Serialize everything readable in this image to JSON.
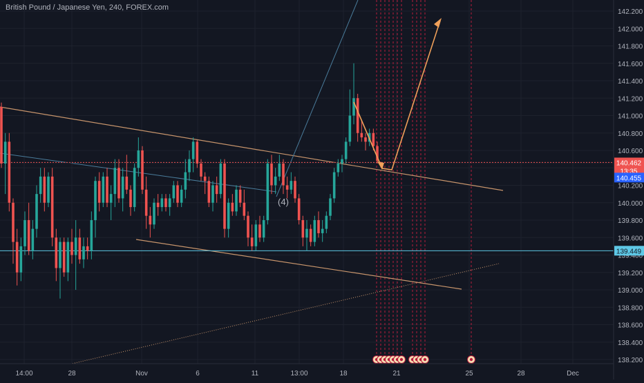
{
  "header": {
    "title": "British Pound / Japanese Yen, 240, FOREX.com"
  },
  "colors": {
    "background": "#131722",
    "grid": "#1e222d",
    "text": "#b2b5be",
    "up": "#26a69a",
    "down": "#ef5350",
    "channel_line": "#c8956c",
    "projection_arrow": "#f0a05a",
    "fib_line": "#4a7c9b",
    "event_line": "#b71c3c",
    "support_line": "#5ec8e6"
  },
  "chart_data": {
    "type": "candlestick",
    "symbol": "British Pound / Japanese Yen",
    "interval": "240",
    "source": "FOREX.com",
    "ylim": [
      138.2,
      142.2
    ],
    "y_ticks": [
      "142.200",
      "142.000",
      "141.800",
      "141.600",
      "141.400",
      "141.200",
      "141.000",
      "140.800",
      "140.600",
      "140.400",
      "140.200",
      "140.000",
      "139.800",
      "139.600",
      "139.400",
      "139.200",
      "139.000",
      "138.800",
      "138.600",
      "138.400",
      "138.200"
    ],
    "x_ticks": [
      "14:00",
      "28",
      "Nov",
      "6",
      "11",
      "13:00",
      "18",
      "21",
      "25",
      "28",
      "Dec"
    ],
    "price_labels": [
      {
        "text": "140.462",
        "sub": "13:35",
        "value": 140.462,
        "color": "#ef5350"
      },
      {
        "text": "140.455",
        "value": 140.455,
        "color": "#2962ff"
      },
      {
        "text": "139.449",
        "value": 139.449,
        "color": "#5ec8e6"
      }
    ],
    "annotation": "(4)",
    "candles": [
      [
        141.1,
        141.15,
        140.4,
        140.45
      ],
      [
        140.45,
        140.8,
        140.1,
        140.7
      ],
      [
        140.7,
        140.8,
        139.9,
        140.0
      ],
      [
        140.0,
        140.05,
        139.3,
        139.55
      ],
      [
        139.55,
        139.7,
        139.05,
        139.2
      ],
      [
        139.2,
        139.6,
        139.1,
        139.5
      ],
      [
        139.5,
        139.9,
        139.4,
        139.8
      ],
      [
        139.8,
        140.0,
        139.4,
        139.45
      ],
      [
        139.45,
        139.8,
        139.35,
        139.7
      ],
      [
        139.7,
        140.2,
        139.6,
        140.1
      ],
      [
        140.1,
        140.4,
        140.0,
        140.3
      ],
      [
        140.3,
        140.4,
        139.9,
        140.0
      ],
      [
        140.0,
        140.35,
        139.95,
        140.3
      ],
      [
        140.3,
        140.4,
        139.5,
        139.6
      ],
      [
        139.6,
        139.7,
        139.1,
        139.25
      ],
      [
        139.25,
        139.6,
        138.9,
        139.55
      ],
      [
        139.55,
        139.6,
        139.15,
        139.2
      ],
      [
        139.2,
        139.6,
        139.1,
        139.55
      ],
      [
        139.55,
        139.7,
        139.3,
        139.4
      ],
      [
        139.4,
        139.8,
        139.0,
        139.6
      ],
      [
        139.6,
        139.7,
        139.3,
        139.35
      ],
      [
        139.35,
        139.6,
        139.25,
        139.5
      ],
      [
        139.5,
        139.6,
        139.35,
        139.45
      ],
      [
        139.45,
        139.9,
        139.35,
        139.8
      ],
      [
        139.8,
        140.3,
        139.6,
        140.25
      ],
      [
        140.25,
        140.35,
        139.9,
        140.0
      ],
      [
        140.0,
        140.35,
        139.95,
        140.3
      ],
      [
        140.3,
        140.4,
        139.95,
        140.0
      ],
      [
        140.0,
        140.2,
        139.8,
        140.1
      ],
      [
        140.1,
        140.5,
        139.95,
        140.4
      ],
      [
        140.4,
        140.5,
        140.0,
        140.05
      ],
      [
        140.05,
        140.4,
        139.9,
        140.3
      ],
      [
        140.3,
        140.55,
        140.1,
        140.15
      ],
      [
        140.15,
        140.2,
        139.85,
        139.95
      ],
      [
        139.95,
        140.45,
        139.9,
        140.4
      ],
      [
        140.4,
        140.75,
        140.3,
        140.6
      ],
      [
        140.6,
        140.65,
        140.1,
        140.15
      ],
      [
        140.15,
        140.3,
        139.7,
        139.85
      ],
      [
        139.85,
        139.95,
        139.6,
        139.75
      ],
      [
        139.75,
        140.05,
        139.7,
        140.0
      ],
      [
        140.0,
        140.1,
        139.85,
        139.95
      ],
      [
        139.95,
        140.1,
        139.9,
        140.05
      ],
      [
        140.05,
        140.1,
        139.9,
        139.95
      ],
      [
        139.95,
        140.1,
        139.85,
        140.05
      ],
      [
        140.05,
        140.25,
        140.0,
        140.2
      ],
      [
        140.2,
        140.25,
        139.95,
        140.0
      ],
      [
        140.0,
        140.2,
        139.95,
        140.15
      ],
      [
        140.15,
        140.5,
        140.05,
        140.35
      ],
      [
        140.35,
        140.6,
        140.25,
        140.5
      ],
      [
        140.5,
        140.75,
        140.35,
        140.7
      ],
      [
        140.7,
        140.72,
        140.4,
        140.45
      ],
      [
        140.45,
        140.5,
        140.25,
        140.3
      ],
      [
        140.3,
        140.35,
        140.1,
        140.25
      ],
      [
        140.25,
        140.3,
        139.95,
        140.0
      ],
      [
        140.0,
        140.25,
        139.9,
        140.2
      ],
      [
        140.2,
        140.3,
        140.0,
        140.1
      ],
      [
        140.1,
        140.5,
        140.05,
        140.45
      ],
      [
        140.45,
        140.5,
        139.6,
        139.7
      ],
      [
        139.7,
        140.05,
        139.6,
        140.0
      ],
      [
        140.0,
        140.1,
        139.85,
        139.9
      ],
      [
        139.9,
        140.2,
        139.85,
        140.15
      ],
      [
        140.15,
        140.2,
        139.95,
        140.0
      ],
      [
        140.0,
        140.15,
        139.8,
        139.85
      ],
      [
        139.85,
        139.9,
        139.5,
        139.6
      ],
      [
        139.6,
        139.75,
        139.45,
        139.5
      ],
      [
        139.5,
        139.8,
        139.45,
        139.75
      ],
      [
        139.75,
        139.85,
        139.55,
        139.6
      ],
      [
        139.6,
        139.85,
        139.55,
        139.8
      ],
      [
        139.8,
        140.5,
        139.75,
        140.45
      ],
      [
        140.45,
        140.55,
        140.1,
        140.2
      ],
      [
        140.2,
        140.4,
        140.1,
        140.3
      ],
      [
        140.3,
        140.55,
        140.25,
        140.45
      ],
      [
        140.45,
        140.5,
        140.1,
        140.2
      ],
      [
        140.2,
        140.3,
        140.05,
        140.15
      ],
      [
        140.15,
        140.35,
        140.1,
        140.25
      ],
      [
        140.25,
        140.3,
        140.0,
        140.05
      ],
      [
        140.05,
        140.1,
        139.75,
        139.8
      ],
      [
        139.8,
        139.85,
        139.5,
        139.6
      ],
      [
        139.6,
        139.8,
        139.45,
        139.7
      ],
      [
        139.7,
        139.75,
        139.5,
        139.55
      ],
      [
        139.55,
        139.85,
        139.5,
        139.8
      ],
      [
        139.8,
        139.9,
        139.6,
        139.65
      ],
      [
        139.65,
        139.8,
        139.55,
        139.7
      ],
      [
        139.7,
        139.9,
        139.65,
        139.85
      ],
      [
        139.85,
        140.1,
        139.8,
        140.05
      ],
      [
        140.05,
        140.4,
        140.0,
        140.35
      ],
      [
        140.35,
        140.5,
        140.3,
        140.45
      ],
      [
        140.45,
        140.55,
        140.35,
        140.5
      ],
      [
        140.5,
        140.75,
        140.45,
        140.7
      ],
      [
        140.7,
        141.3,
        140.65,
        141.0
      ],
      [
        141.0,
        141.6,
        140.9,
        141.2
      ],
      [
        141.2,
        141.25,
        140.7,
        140.8
      ],
      [
        140.8,
        140.95,
        140.7,
        140.75
      ],
      [
        140.75,
        140.8,
        140.6,
        140.7
      ],
      [
        140.7,
        140.85,
        140.65,
        140.8
      ],
      [
        140.8,
        140.85,
        140.6,
        140.65
      ],
      [
        140.65,
        140.7,
        140.45,
        140.48
      ]
    ]
  }
}
